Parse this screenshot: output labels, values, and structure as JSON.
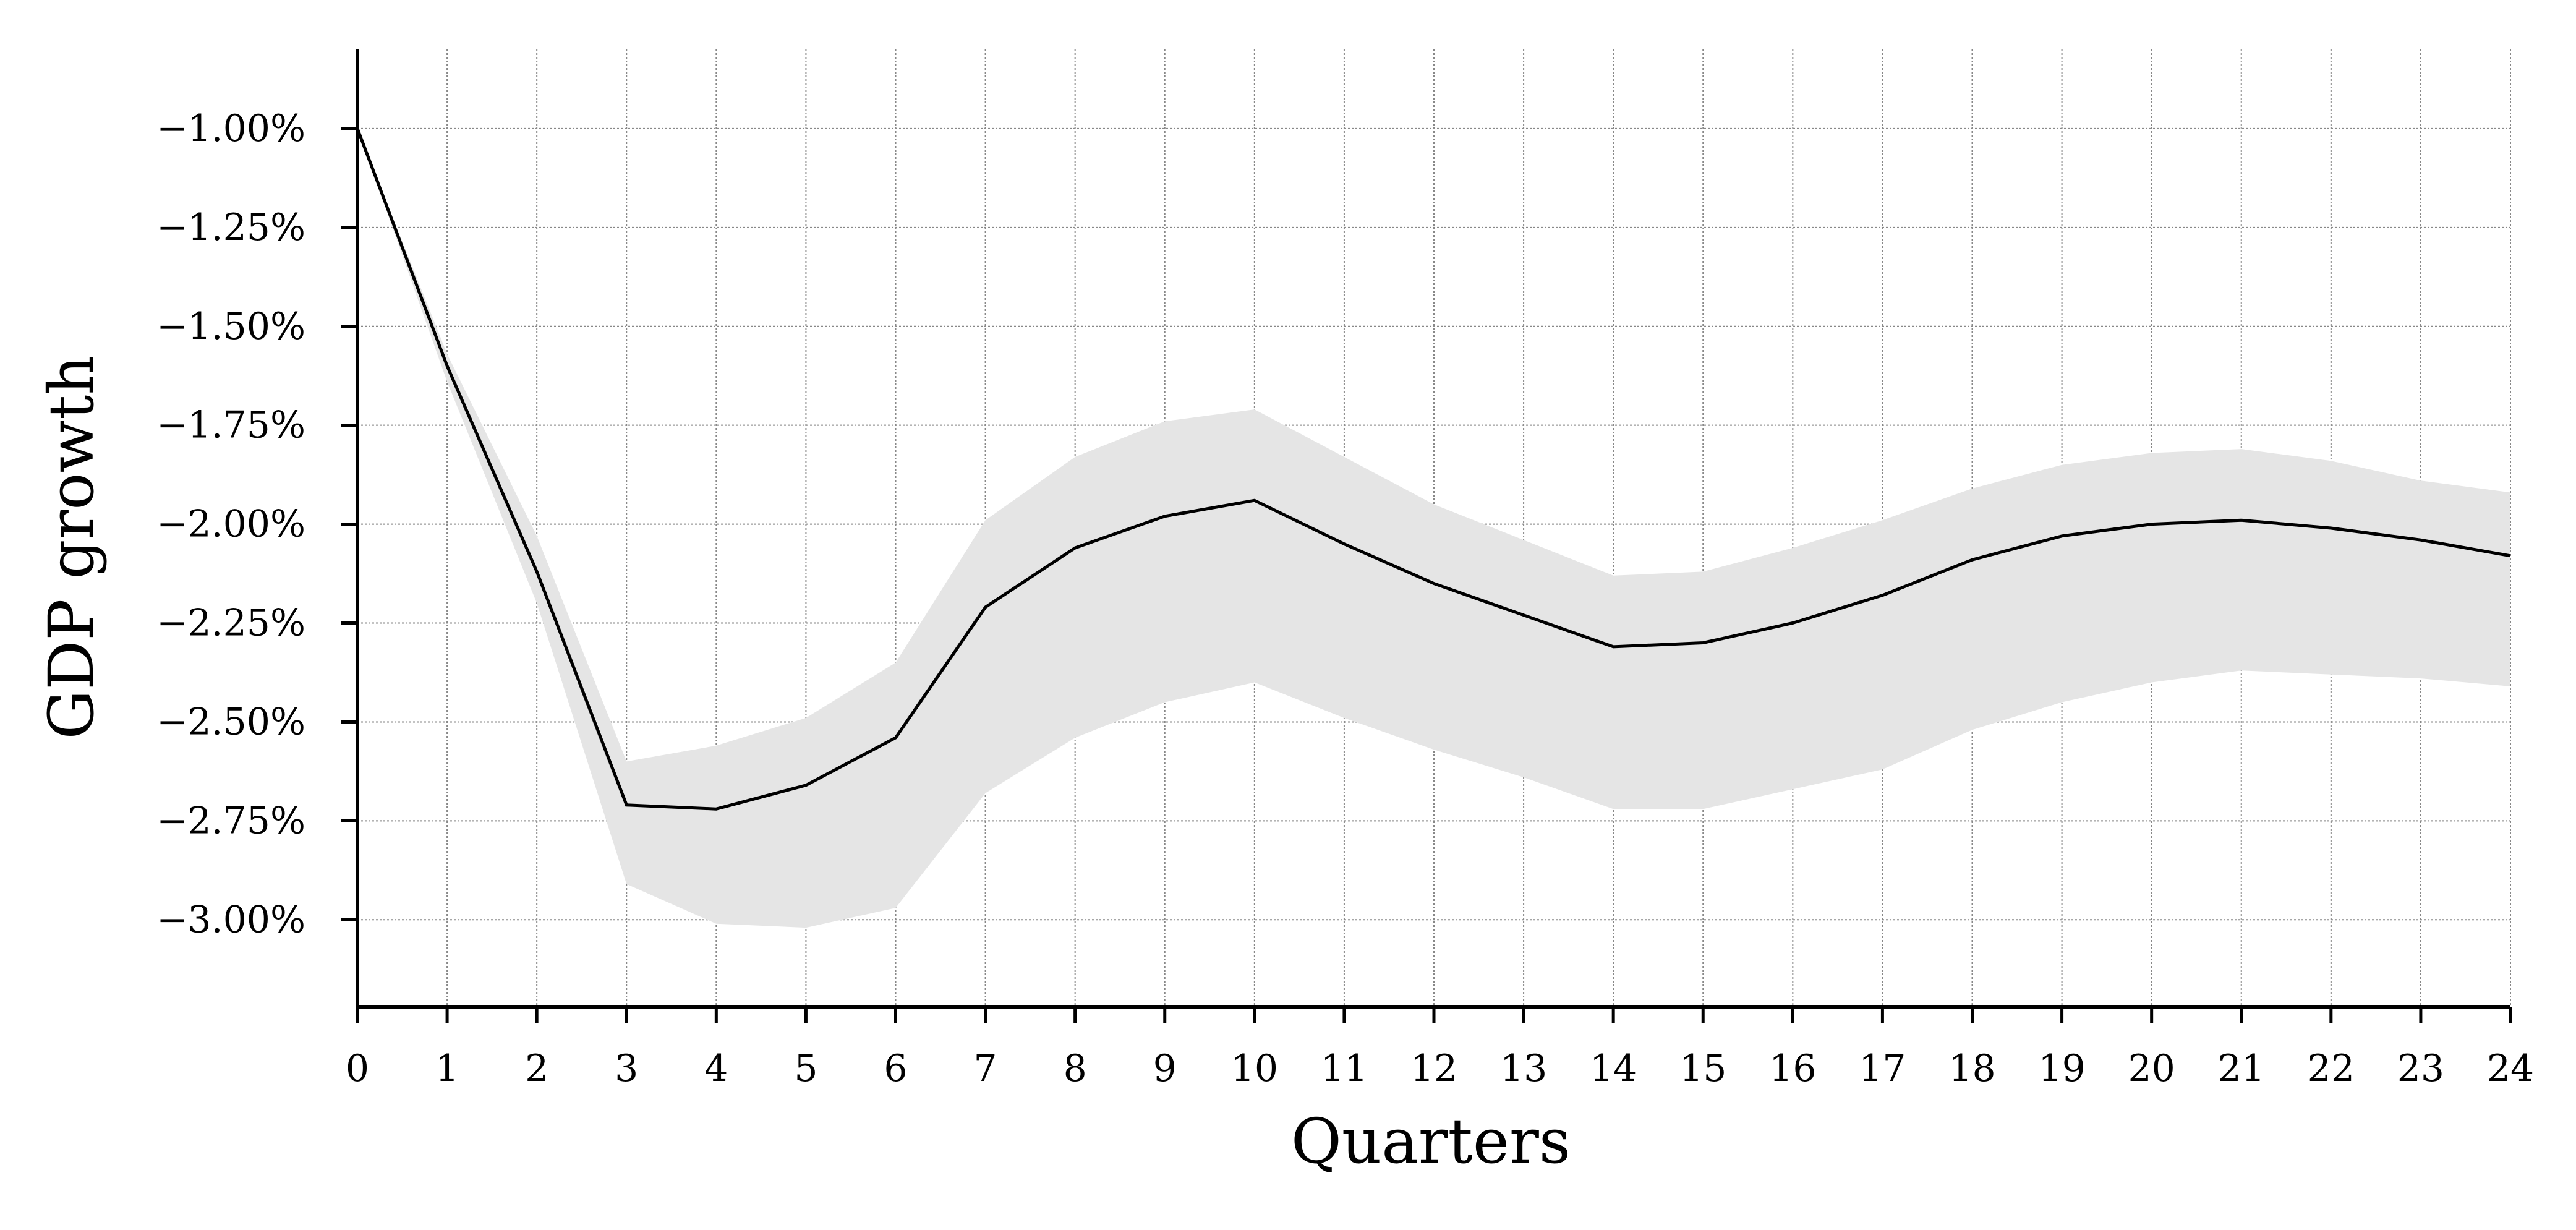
{
  "chart_data": {
    "type": "line",
    "xlabel": "Quarters",
    "ylabel": "GDP growth",
    "x": [
      0,
      1,
      2,
      3,
      4,
      5,
      6,
      7,
      8,
      9,
      10,
      11,
      12,
      13,
      14,
      15,
      16,
      17,
      18,
      19,
      20,
      21,
      22,
      23,
      24
    ],
    "xticks": [
      0,
      1,
      2,
      3,
      4,
      5,
      6,
      7,
      8,
      9,
      10,
      11,
      12,
      13,
      14,
      15,
      16,
      17,
      18,
      19,
      20,
      21,
      22,
      23,
      24
    ],
    "xtick_labels": [
      "0",
      "1",
      "2",
      "3",
      "4",
      "5",
      "6",
      "7",
      "8",
      "9",
      "10",
      "11",
      "12",
      "13",
      "14",
      "15",
      "16",
      "17",
      "18",
      "19",
      "20",
      "21",
      "22",
      "23",
      "24"
    ],
    "yticks": [
      -1.0,
      -1.25,
      -1.5,
      -1.75,
      -2.0,
      -2.25,
      -2.5,
      -2.75,
      -3.0
    ],
    "ytick_labels": [
      "−1.00%",
      "−1.25%",
      "−1.50%",
      "−1.75%",
      "−2.00%",
      "−2.25%",
      "−2.50%",
      "−2.75%",
      "−3.00%"
    ],
    "xlim": [
      0,
      24
    ],
    "ylim": [
      -3.22,
      -0.8
    ],
    "grid": true,
    "series": [
      {
        "values": [
          -1.0,
          -1.6,
          -2.12,
          -2.71,
          -2.72,
          -2.66,
          -2.54,
          -2.21,
          -2.06,
          -1.98,
          -1.94,
          -2.05,
          -2.15,
          -2.23,
          -2.31,
          -2.3,
          -2.25,
          -2.18,
          -2.09,
          -2.03,
          -2.0,
          -1.99,
          -2.01,
          -2.04,
          -2.08
        ],
        "color": "#000000"
      }
    ],
    "band": {
      "lower": [
        -1.0,
        -1.64,
        -2.2,
        -2.91,
        -3.01,
        -3.02,
        -2.97,
        -2.68,
        -2.54,
        -2.45,
        -2.4,
        -2.49,
        -2.57,
        -2.64,
        -2.72,
        -2.72,
        -2.67,
        -2.62,
        -2.52,
        -2.45,
        -2.4,
        -2.37,
        -2.38,
        -2.39,
        -2.41
      ],
      "upper": [
        -1.0,
        -1.57,
        -2.03,
        -2.6,
        -2.56,
        -2.49,
        -2.35,
        -1.99,
        -1.83,
        -1.74,
        -1.71,
        -1.83,
        -1.95,
        -2.04,
        -2.13,
        -2.12,
        -2.06,
        -1.99,
        -1.91,
        -1.85,
        -1.82,
        -1.81,
        -1.84,
        -1.89,
        -1.92
      ],
      "color": "#e5e5e5"
    },
    "grid_color": "#888888"
  }
}
